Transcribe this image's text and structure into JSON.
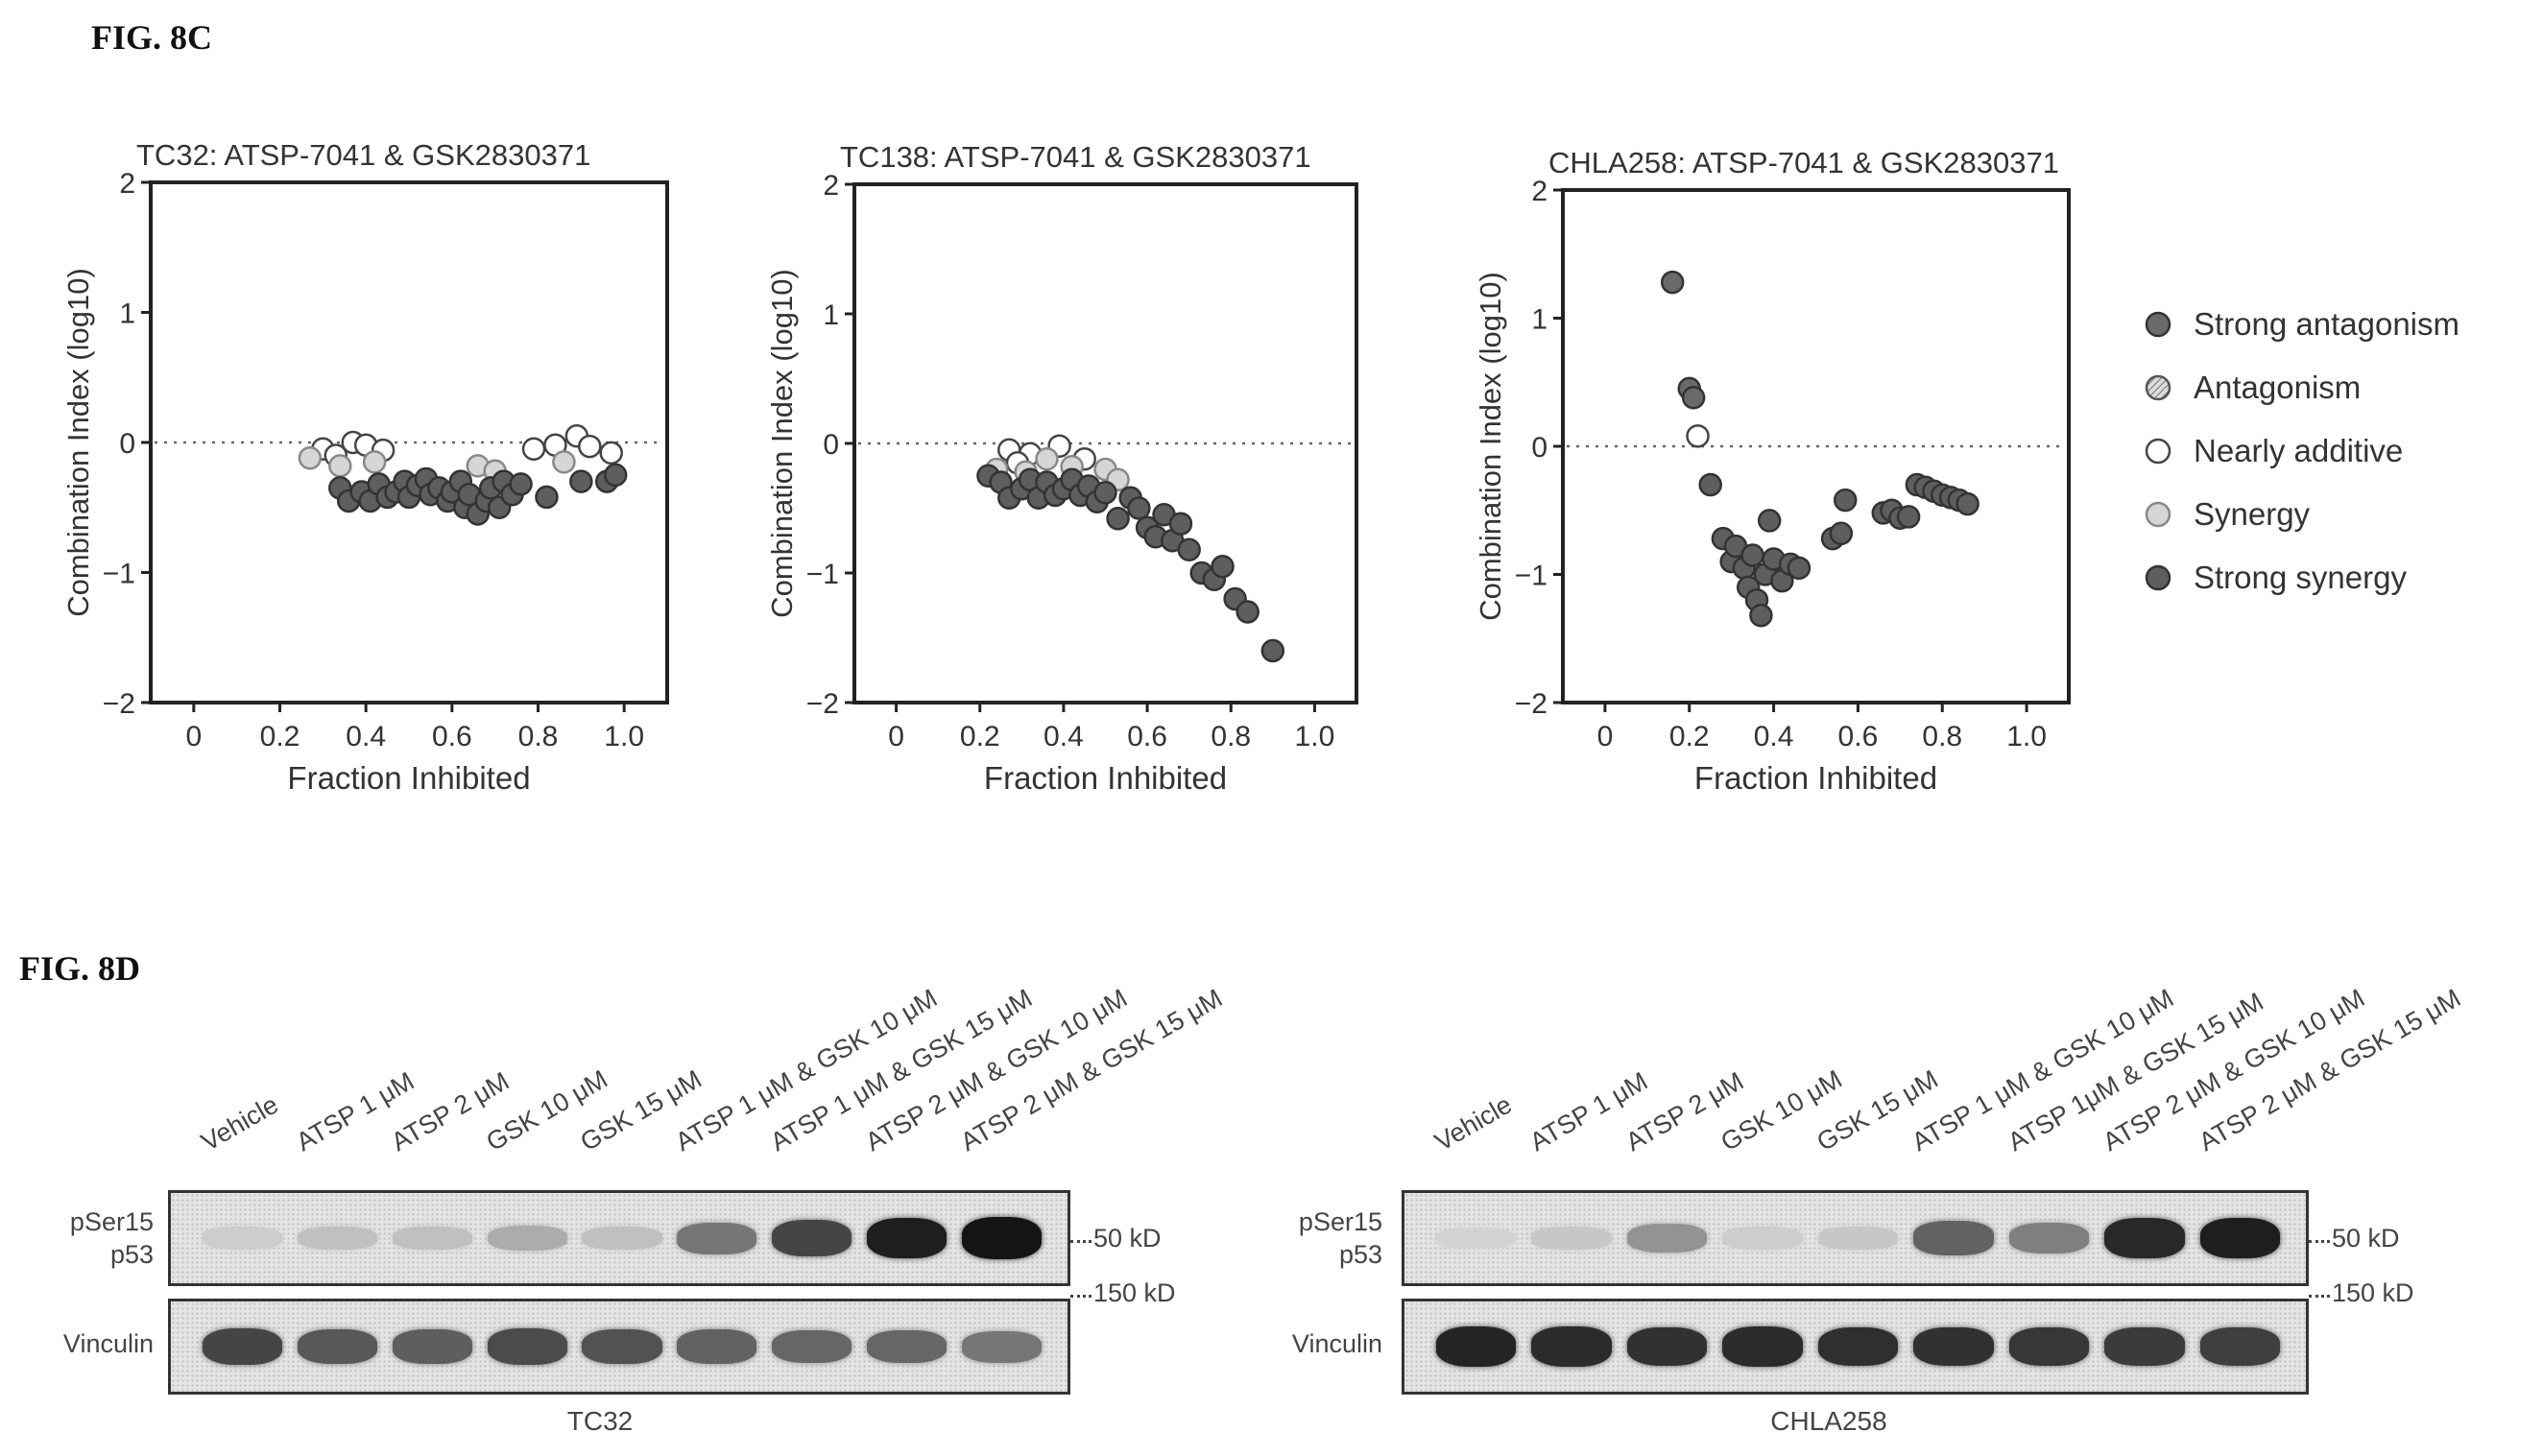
{
  "figure_labels": {
    "fig8c": "FIG. 8C",
    "fig8d": "FIG. 8D"
  },
  "legend": [
    {
      "label": "Strong antagonism",
      "color": "#6a6a6a",
      "style": "filled"
    },
    {
      "label": "Antagonism",
      "color": "#9a9a9a",
      "style": "hatched"
    },
    {
      "label": "Nearly additive",
      "color": "#ffffff",
      "style": "open"
    },
    {
      "label": "Synergy",
      "color": "#c4c4c4",
      "style": "light"
    },
    {
      "label": "Strong synergy",
      "color": "#5e5e5e",
      "style": "filled"
    }
  ],
  "chart_data": [
    {
      "type": "scatter",
      "title": "TC32: ATSP-7041 & GSK2830371",
      "xlabel": "Fraction Inhibited",
      "ylabel": "Combination Index (log10)",
      "xlim": [
        -0.1,
        1.1
      ],
      "ylim": [
        -2,
        2
      ],
      "xticks": [
        "0",
        "0.2",
        "0.4",
        "0.6",
        "0.8",
        "1.0"
      ],
      "yticks": [
        "2",
        "1",
        "0",
        "−1",
        "−2"
      ],
      "reference_line_y": 0,
      "grid": false,
      "series": [
        {
          "name": "Nearly additive",
          "points": [
            [
              0.3,
              -0.05
            ],
            [
              0.33,
              -0.1
            ],
            [
              0.37,
              0.0
            ],
            [
              0.4,
              -0.02
            ],
            [
              0.44,
              -0.06
            ],
            [
              0.79,
              -0.05
            ],
            [
              0.84,
              -0.02
            ],
            [
              0.89,
              0.05
            ],
            [
              0.92,
              -0.03
            ],
            [
              0.97,
              -0.08
            ]
          ]
        },
        {
          "name": "Synergy",
          "points": [
            [
              0.27,
              -0.12
            ],
            [
              0.34,
              -0.18
            ],
            [
              0.42,
              -0.15
            ],
            [
              0.66,
              -0.18
            ],
            [
              0.7,
              -0.22
            ],
            [
              0.86,
              -0.15
            ]
          ]
        },
        {
          "name": "Strong synergy",
          "points": [
            [
              0.34,
              -0.35
            ],
            [
              0.36,
              -0.45
            ],
            [
              0.39,
              -0.38
            ],
            [
              0.41,
              -0.45
            ],
            [
              0.43,
              -0.32
            ],
            [
              0.45,
              -0.42
            ],
            [
              0.47,
              -0.38
            ],
            [
              0.49,
              -0.3
            ],
            [
              0.5,
              -0.42
            ],
            [
              0.52,
              -0.33
            ],
            [
              0.54,
              -0.28
            ],
            [
              0.55,
              -0.4
            ],
            [
              0.57,
              -0.35
            ],
            [
              0.59,
              -0.45
            ],
            [
              0.6,
              -0.38
            ],
            [
              0.62,
              -0.3
            ],
            [
              0.63,
              -0.5
            ],
            [
              0.64,
              -0.4
            ],
            [
              0.66,
              -0.55
            ],
            [
              0.68,
              -0.45
            ],
            [
              0.69,
              -0.35
            ],
            [
              0.71,
              -0.5
            ],
            [
              0.72,
              -0.3
            ],
            [
              0.74,
              -0.4
            ],
            [
              0.76,
              -0.32
            ],
            [
              0.82,
              -0.42
            ],
            [
              0.9,
              -0.3
            ],
            [
              0.96,
              -0.3
            ],
            [
              0.98,
              -0.25
            ]
          ]
        }
      ]
    },
    {
      "type": "scatter",
      "title": "TC138: ATSP-7041 & GSK2830371",
      "xlabel": "Fraction Inhibited",
      "ylabel": "Combination Index (log10)",
      "xlim": [
        -0.1,
        1.1
      ],
      "ylim": [
        -2,
        2
      ],
      "xticks": [
        "0",
        "0.2",
        "0.4",
        "0.6",
        "0.8",
        "1.0"
      ],
      "yticks": [
        "2",
        "1",
        "0",
        "−1",
        "−2"
      ],
      "reference_line_y": 0,
      "grid": false,
      "series": [
        {
          "name": "Nearly additive",
          "points": [
            [
              0.27,
              -0.05
            ],
            [
              0.32,
              -0.08
            ],
            [
              0.39,
              -0.02
            ],
            [
              0.45,
              -0.12
            ],
            [
              0.29,
              -0.15
            ]
          ]
        },
        {
          "name": "Synergy",
          "points": [
            [
              0.24,
              -0.2
            ],
            [
              0.31,
              -0.22
            ],
            [
              0.36,
              -0.12
            ],
            [
              0.42,
              -0.18
            ],
            [
              0.5,
              -0.2
            ],
            [
              0.53,
              -0.28
            ]
          ]
        },
        {
          "name": "Strong synergy",
          "points": [
            [
              0.22,
              -0.25
            ],
            [
              0.25,
              -0.3
            ],
            [
              0.27,
              -0.42
            ],
            [
              0.3,
              -0.35
            ],
            [
              0.32,
              -0.28
            ],
            [
              0.34,
              -0.42
            ],
            [
              0.36,
              -0.3
            ],
            [
              0.38,
              -0.4
            ],
            [
              0.4,
              -0.35
            ],
            [
              0.42,
              -0.28
            ],
            [
              0.44,
              -0.4
            ],
            [
              0.46,
              -0.33
            ],
            [
              0.48,
              -0.45
            ],
            [
              0.5,
              -0.38
            ],
            [
              0.53,
              -0.58
            ],
            [
              0.56,
              -0.42
            ],
            [
              0.58,
              -0.5
            ],
            [
              0.6,
              -0.65
            ],
            [
              0.62,
              -0.72
            ],
            [
              0.64,
              -0.55
            ],
            [
              0.66,
              -0.75
            ],
            [
              0.68,
              -0.62
            ],
            [
              0.7,
              -0.82
            ],
            [
              0.73,
              -1.0
            ],
            [
              0.76,
              -1.05
            ],
            [
              0.78,
              -0.95
            ],
            [
              0.81,
              -1.2
            ],
            [
              0.84,
              -1.3
            ],
            [
              0.9,
              -1.6
            ]
          ]
        }
      ]
    },
    {
      "type": "scatter",
      "title": "CHLA258: ATSP-7041 & GSK2830371",
      "xlabel": "Fraction Inhibited",
      "ylabel": "Combination Index (log10)",
      "xlim": [
        -0.1,
        1.1
      ],
      "ylim": [
        -2,
        2
      ],
      "xticks": [
        "0",
        "0.2",
        "0.4",
        "0.6",
        "0.8",
        "1.0"
      ],
      "yticks": [
        "2",
        "1",
        "0",
        "−1",
        "−2"
      ],
      "reference_line_y": 0,
      "grid": false,
      "series": [
        {
          "name": "Strong antagonism",
          "points": [
            [
              0.16,
              1.28
            ],
            [
              0.2,
              0.45
            ],
            [
              0.21,
              0.38
            ]
          ]
        },
        {
          "name": "Nearly additive",
          "points": [
            [
              0.22,
              0.08
            ]
          ]
        },
        {
          "name": "Strong synergy",
          "points": [
            [
              0.25,
              -0.3
            ],
            [
              0.28,
              -0.72
            ],
            [
              0.3,
              -0.9
            ],
            [
              0.31,
              -0.78
            ],
            [
              0.33,
              -0.95
            ],
            [
              0.34,
              -1.1
            ],
            [
              0.35,
              -0.85
            ],
            [
              0.36,
              -1.2
            ],
            [
              0.37,
              -1.32
            ],
            [
              0.38,
              -1.0
            ],
            [
              0.39,
              -0.58
            ],
            [
              0.4,
              -0.88
            ],
            [
              0.42,
              -1.05
            ],
            [
              0.44,
              -0.92
            ],
            [
              0.46,
              -0.95
            ],
            [
              0.54,
              -0.72
            ],
            [
              0.56,
              -0.68
            ],
            [
              0.57,
              -0.42
            ],
            [
              0.66,
              -0.52
            ],
            [
              0.68,
              -0.5
            ],
            [
              0.7,
              -0.56
            ],
            [
              0.72,
              -0.55
            ],
            [
              0.74,
              -0.3
            ],
            [
              0.76,
              -0.32
            ],
            [
              0.78,
              -0.35
            ],
            [
              0.8,
              -0.38
            ],
            [
              0.82,
              -0.4
            ],
            [
              0.84,
              -0.42
            ],
            [
              0.86,
              -0.45
            ]
          ]
        }
      ]
    }
  ],
  "western_blots": [
    {
      "cell_line": "TC32",
      "lanes": [
        "Vehicle",
        "ATSP 1 μM",
        "ATSP 2 μM",
        "GSK 10 μM",
        "GSK 15 μM",
        "ATSP 1 μM & GSK 10 μM",
        "ATSP 1 μM & GSK 15 μM",
        "ATSP 2 μM & GSK 10 μM",
        "ATSP 2 μM & GSK 15 μM"
      ],
      "rows": [
        {
          "label_line1": "pSer15",
          "label_line2": "p53",
          "marker": "50 kD",
          "intensities": [
            0.05,
            0.12,
            0.12,
            0.22,
            0.12,
            0.5,
            0.75,
            0.95,
            1.0
          ]
        },
        {
          "label_line1": "Vinculin",
          "label_line2": "",
          "marker": "150 kD",
          "intensities": [
            0.75,
            0.65,
            0.62,
            0.72,
            0.68,
            0.6,
            0.58,
            0.58,
            0.5
          ]
        }
      ]
    },
    {
      "cell_line": "CHLA258",
      "lanes": [
        "Vehicle",
        "ATSP 1 μM",
        "ATSP 2 μM",
        "GSK 10 μM",
        "GSK 15 μM",
        "ATSP 1 μM & GSK 10 μM",
        "ATSP 1μM & GSK 15 μM",
        "ATSP 2 μM & GSK 10 μM",
        "ATSP 2 μM & GSK 15 μM"
      ],
      "rows": [
        {
          "label_line1": "pSer15",
          "label_line2": "p53",
          "marker": "50 kD",
          "intensities": [
            0.02,
            0.08,
            0.35,
            0.05,
            0.08,
            0.6,
            0.45,
            0.9,
            0.95
          ]
        },
        {
          "label_line1": "Vinculin",
          "label_line2": "",
          "marker": "150 kD",
          "intensities": [
            0.92,
            0.88,
            0.85,
            0.88,
            0.86,
            0.85,
            0.82,
            0.8,
            0.78
          ]
        }
      ]
    }
  ]
}
